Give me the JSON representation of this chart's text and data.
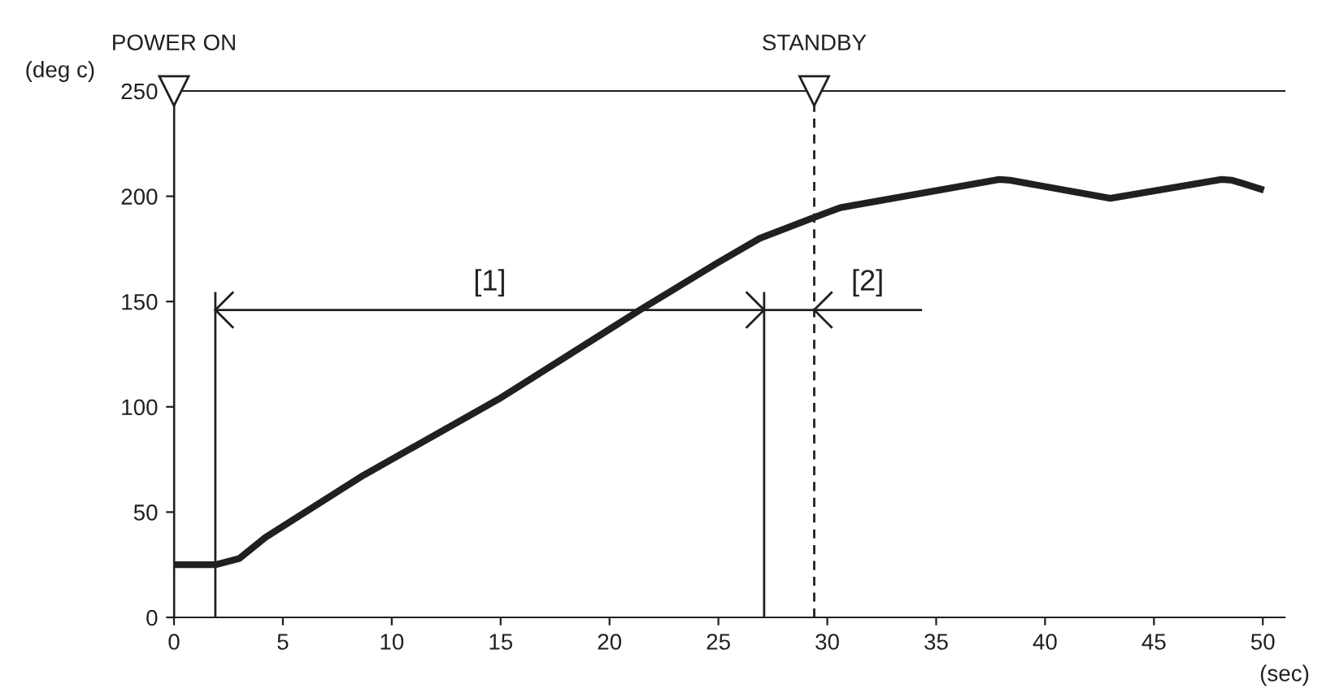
{
  "chart_data": {
    "type": "line",
    "xlabel": "(sec)",
    "ylabel": "(deg c)",
    "x": [
      0,
      1.9,
      3,
      4.2,
      8.7,
      14.9,
      21.4,
      24.9,
      26.9,
      29.4,
      30.6,
      37.9,
      38.4,
      43.0,
      48.1,
      48.6,
      49.9
    ],
    "series": [
      {
        "color": "#231f20",
        "values": [
          25,
          25,
          28,
          38,
          67.5,
          103.6,
          146,
          168,
          180,
          190,
          194.6,
          208,
          207.6,
          199,
          208,
          207.6,
          203.4
        ]
      },
      {
        "color": "#231f20",
        "x": [
          1.9,
          34.3
        ],
        "values": [
          146,
          146
        ]
      }
    ],
    "xlim": [
      0,
      51
    ],
    "ylim": [
      0,
      250
    ],
    "xticks": [
      0,
      5,
      10,
      15,
      20,
      25,
      30,
      35,
      40,
      45,
      50
    ],
    "yticks": [
      0,
      50,
      100,
      150,
      200,
      250
    ],
    "grid": false,
    "line_style": "solid",
    "ref_lines": [
      {
        "axis": "x",
        "value": 0,
        "label": "POWER ON"
      },
      {
        "axis": "x",
        "value": 29.4,
        "label": "STANDBY",
        "line_style": "dashed"
      },
      {
        "axis": "x",
        "value": 1.9
      },
      {
        "axis": "x",
        "value": 27.1
      }
    ],
    "annotations": [
      {
        "text": "[1]",
        "x": 14.5,
        "y": 146
      },
      {
        "text": "[2]",
        "x": 31.85,
        "y": 146
      }
    ]
  }
}
